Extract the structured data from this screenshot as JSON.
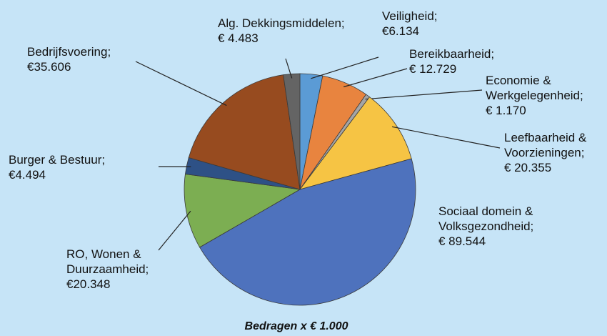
{
  "chart_data": {
    "type": "pie",
    "note": "Bedragen x € 1.000",
    "categories": [
      "Veiligheid;",
      "Bereikbaarheid;",
      "Economie & Werkgelegenheid;",
      "Leefbaarheid & Voorzieningen;",
      "Sociaal domein & Volksgezondheid;",
      "RO, Wonen & Duurzaamheid;",
      "Burger & Bestuur;",
      "Bedrijfsvoering;",
      "Alg. Dekkingsmiddelen;"
    ],
    "values": [
      6134,
      12729,
      1170,
      20355,
      89544,
      20348,
      4494,
      35606,
      4483
    ],
    "value_labels": [
      "€6.134",
      "€ 12.729",
      "€ 1.170",
      "€ 20.355",
      "€ 89.544",
      "€20.348",
      "€4.494",
      "€35.606",
      "€ 4.483"
    ],
    "colors": [
      "#5b9bd5",
      "#e8843f",
      "#a5a5a5",
      "#f6c444",
      "#4e72bd",
      "#7cae52",
      "#2e5186",
      "#974b1f",
      "#646464"
    ]
  }
}
